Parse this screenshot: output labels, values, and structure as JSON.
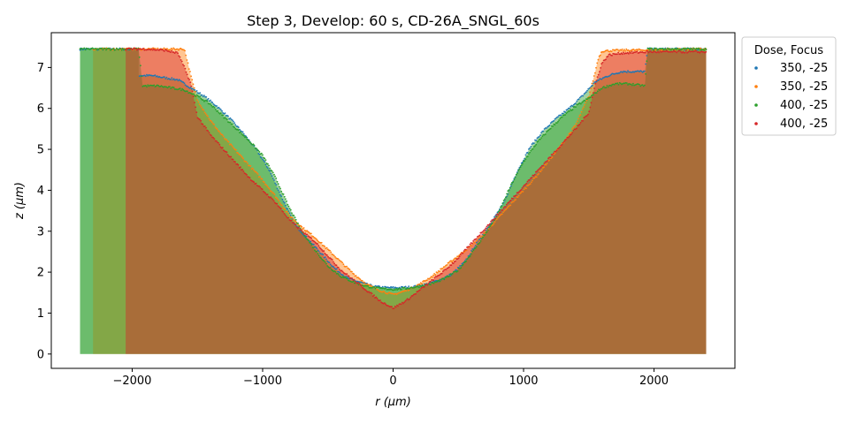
{
  "chart_data": {
    "type": "area",
    "title": "Step 3, Develop: 60 s, CD-26A_SNGL_60s",
    "xlabel": "r (μm)",
    "ylabel": "z (μm)",
    "xlim": [
      -2620,
      2620
    ],
    "ylim": [
      -0.35,
      7.85
    ],
    "xticks": [
      -2000,
      -1000,
      0,
      1000,
      2000
    ],
    "xtick_labels": [
      "−2000",
      "−1000",
      "0",
      "1000",
      "2000"
    ],
    "yticks": [
      0,
      1,
      2,
      3,
      4,
      5,
      6,
      7
    ],
    "grid": false,
    "legend": {
      "title": "Dose, Focus",
      "position": "outside-right"
    },
    "fill_alpha": 0.45,
    "series": [
      {
        "name": "350, -25",
        "color": "#1f77b4",
        "fill": "#2ca02c",
        "x_range": [
          -2400,
          2400
        ],
        "points": [
          [
            -2400,
            7.45
          ],
          [
            -2300,
            7.45
          ],
          [
            -2050,
            7.45
          ],
          [
            -1950,
            7.45
          ],
          [
            -1950,
            6.8
          ],
          [
            -1850,
            6.8
          ],
          [
            -1750,
            6.75
          ],
          [
            -1650,
            6.7
          ],
          [
            -1550,
            6.5
          ],
          [
            -1450,
            6.3
          ],
          [
            -1350,
            6.05
          ],
          [
            -1250,
            5.75
          ],
          [
            -1150,
            5.4
          ],
          [
            -1050,
            5.0
          ],
          [
            -950,
            4.5
          ],
          [
            -850,
            3.8
          ],
          [
            -750,
            3.15
          ],
          [
            -650,
            2.8
          ],
          [
            -550,
            2.45
          ],
          [
            -450,
            2.1
          ],
          [
            -350,
            1.85
          ],
          [
            -250,
            1.75
          ],
          [
            -150,
            1.65
          ],
          [
            -50,
            1.62
          ],
          [
            50,
            1.62
          ],
          [
            150,
            1.64
          ],
          [
            250,
            1.7
          ],
          [
            350,
            1.8
          ],
          [
            450,
            1.95
          ],
          [
            550,
            2.25
          ],
          [
            650,
            2.75
          ],
          [
            750,
            3.2
          ],
          [
            850,
            3.7
          ],
          [
            950,
            4.45
          ],
          [
            1050,
            5.05
          ],
          [
            1150,
            5.45
          ],
          [
            1250,
            5.75
          ],
          [
            1350,
            6.0
          ],
          [
            1450,
            6.3
          ],
          [
            1550,
            6.65
          ],
          [
            1650,
            6.8
          ],
          [
            1750,
            6.9
          ],
          [
            1850,
            6.9
          ],
          [
            1930,
            6.9
          ],
          [
            1950,
            7.45
          ],
          [
            2050,
            7.45
          ],
          [
            2200,
            7.45
          ],
          [
            2400,
            7.45
          ]
        ]
      },
      {
        "name": "350, -25",
        "color": "#ff7f0e",
        "fill": "#ff7f0e",
        "x_range": [
          -2300,
          2400
        ],
        "points": [
          [
            -2300,
            7.45
          ],
          [
            -2100,
            7.45
          ],
          [
            -1900,
            7.45
          ],
          [
            -1750,
            7.45
          ],
          [
            -1600,
            7.45
          ],
          [
            -1580,
            7.2
          ],
          [
            -1550,
            6.8
          ],
          [
            -1500,
            6.2
          ],
          [
            -1400,
            5.7
          ],
          [
            -1300,
            5.3
          ],
          [
            -1200,
            4.95
          ],
          [
            -1100,
            4.6
          ],
          [
            -1000,
            4.25
          ],
          [
            -900,
            3.85
          ],
          [
            -800,
            3.4
          ],
          [
            -700,
            3.1
          ],
          [
            -600,
            2.85
          ],
          [
            -500,
            2.55
          ],
          [
            -400,
            2.25
          ],
          [
            -300,
            1.95
          ],
          [
            -200,
            1.7
          ],
          [
            -100,
            1.55
          ],
          [
            0,
            1.45
          ],
          [
            100,
            1.55
          ],
          [
            200,
            1.7
          ],
          [
            300,
            1.9
          ],
          [
            400,
            2.15
          ],
          [
            500,
            2.4
          ],
          [
            600,
            2.65
          ],
          [
            700,
            2.95
          ],
          [
            800,
            3.3
          ],
          [
            900,
            3.65
          ],
          [
            1000,
            4.0
          ],
          [
            1100,
            4.35
          ],
          [
            1200,
            4.75
          ],
          [
            1300,
            5.15
          ],
          [
            1400,
            5.6
          ],
          [
            1500,
            6.3
          ],
          [
            1550,
            6.9
          ],
          [
            1570,
            7.2
          ],
          [
            1600,
            7.4
          ],
          [
            1750,
            7.42
          ],
          [
            1950,
            7.43
          ],
          [
            2200,
            7.45
          ],
          [
            2400,
            7.45
          ]
        ]
      },
      {
        "name": "400, -25",
        "color": "#2ca02c",
        "fill": "#2ca02c",
        "x_range": [
          -2400,
          2400
        ],
        "points": [
          [
            -2400,
            7.45
          ],
          [
            -2200,
            7.45
          ],
          [
            -1950,
            7.45
          ],
          [
            -1920,
            6.55
          ],
          [
            -1800,
            6.55
          ],
          [
            -1700,
            6.5
          ],
          [
            -1600,
            6.45
          ],
          [
            -1500,
            6.3
          ],
          [
            -1400,
            6.1
          ],
          [
            -1300,
            5.8
          ],
          [
            -1200,
            5.5
          ],
          [
            -1100,
            5.2
          ],
          [
            -1000,
            4.85
          ],
          [
            -900,
            4.3
          ],
          [
            -800,
            3.6
          ],
          [
            -700,
            3.0
          ],
          [
            -600,
            2.55
          ],
          [
            -500,
            2.15
          ],
          [
            -400,
            1.9
          ],
          [
            -300,
            1.75
          ],
          [
            -200,
            1.65
          ],
          [
            -100,
            1.6
          ],
          [
            0,
            1.58
          ],
          [
            100,
            1.6
          ],
          [
            200,
            1.65
          ],
          [
            300,
            1.72
          ],
          [
            400,
            1.85
          ],
          [
            500,
            2.05
          ],
          [
            600,
            2.45
          ],
          [
            700,
            2.9
          ],
          [
            800,
            3.4
          ],
          [
            900,
            4.1
          ],
          [
            1000,
            4.7
          ],
          [
            1100,
            5.15
          ],
          [
            1200,
            5.5
          ],
          [
            1300,
            5.8
          ],
          [
            1400,
            6.05
          ],
          [
            1500,
            6.25
          ],
          [
            1600,
            6.5
          ],
          [
            1700,
            6.6
          ],
          [
            1800,
            6.6
          ],
          [
            1930,
            6.55
          ],
          [
            1950,
            7.45
          ],
          [
            2200,
            7.45
          ],
          [
            2400,
            7.45
          ]
        ]
      },
      {
        "name": "400, -25",
        "color": "#d62728",
        "fill": "#d62728",
        "x_range": [
          -2050,
          2400
        ],
        "points": [
          [
            -2050,
            7.45
          ],
          [
            -1900,
            7.45
          ],
          [
            -1750,
            7.42
          ],
          [
            -1650,
            7.35
          ],
          [
            -1600,
            7.0
          ],
          [
            -1550,
            6.6
          ],
          [
            -1500,
            5.8
          ],
          [
            -1400,
            5.35
          ],
          [
            -1300,
            5.0
          ],
          [
            -1200,
            4.65
          ],
          [
            -1100,
            4.3
          ],
          [
            -1000,
            4.0
          ],
          [
            -900,
            3.7
          ],
          [
            -800,
            3.3
          ],
          [
            -700,
            3.0
          ],
          [
            -600,
            2.75
          ],
          [
            -500,
            2.4
          ],
          [
            -400,
            2.05
          ],
          [
            -300,
            1.8
          ],
          [
            -200,
            1.55
          ],
          [
            -100,
            1.3
          ],
          [
            0,
            1.12
          ],
          [
            100,
            1.3
          ],
          [
            200,
            1.55
          ],
          [
            300,
            1.8
          ],
          [
            400,
            2.05
          ],
          [
            500,
            2.35
          ],
          [
            600,
            2.7
          ],
          [
            700,
            3.05
          ],
          [
            800,
            3.4
          ],
          [
            900,
            3.75
          ],
          [
            1000,
            4.1
          ],
          [
            1100,
            4.45
          ],
          [
            1200,
            4.8
          ],
          [
            1300,
            5.15
          ],
          [
            1400,
            5.5
          ],
          [
            1500,
            5.9
          ],
          [
            1550,
            6.6
          ],
          [
            1600,
            7.1
          ],
          [
            1650,
            7.3
          ],
          [
            1750,
            7.35
          ],
          [
            1950,
            7.38
          ],
          [
            2200,
            7.38
          ],
          [
            2400,
            7.38
          ]
        ]
      }
    ]
  }
}
